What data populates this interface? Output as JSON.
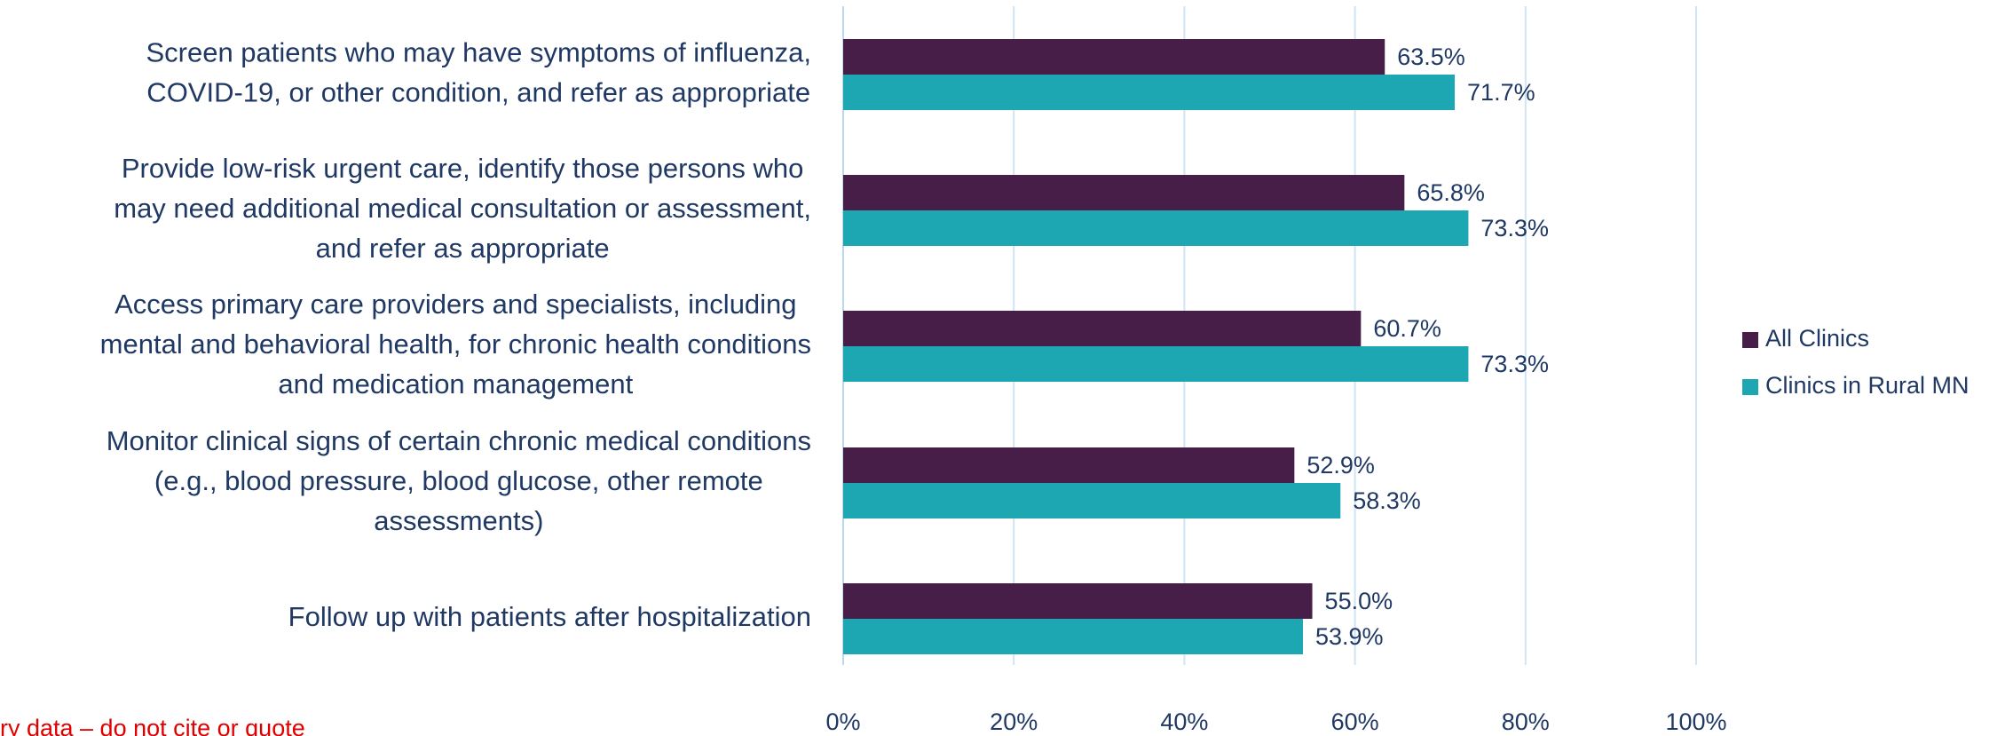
{
  "chart_data": {
    "type": "bar",
    "orientation": "horizontal",
    "categories": [
      [
        "Screen patients who may have symptoms of influenza,",
        "COVID-19, or other condition, and refer as appropriate"
      ],
      [
        "Provide low-risk urgent care, identify those persons who",
        "may need additional medical consultation or assessment,",
        "and refer as appropriate"
      ],
      [
        "Access primary care providers and specialists, including",
        "mental and behavioral health, for chronic health conditions",
        "and medication management"
      ],
      [
        "Monitor clinical signs of certain chronic medical conditions",
        "(e.g., blood pressure, blood glucose, other remote",
        "assessments)"
      ],
      [
        "Follow up with patients after hospitalization"
      ]
    ],
    "series": [
      {
        "name": "All Clinics",
        "color": "#461e48",
        "values": [
          63.5,
          65.8,
          60.7,
          52.9,
          55.0
        ],
        "value_labels": [
          "63.5%",
          "65.8%",
          "60.7%",
          "52.9%",
          "55.0%"
        ]
      },
      {
        "name": "Clinics in Rural MN",
        "color": "#1ca7b2",
        "values": [
          71.7,
          73.3,
          73.3,
          58.3,
          53.9
        ],
        "value_labels": [
          "71.7%",
          "73.3%",
          "73.3%",
          "58.3%",
          "53.9%"
        ]
      }
    ],
    "xlim": [
      0,
      100
    ],
    "xticks": [
      {
        "value": 0,
        "label": "0%"
      },
      {
        "value": 20,
        "label": "20%"
      },
      {
        "value": 40,
        "label": "40%"
      },
      {
        "value": 60,
        "label": "60%"
      },
      {
        "value": 80,
        "label": "80%"
      },
      {
        "value": 100,
        "label": "100%"
      }
    ],
    "grid": true,
    "legend": "right",
    "annotation": "ry data – do not cite or quote"
  }
}
